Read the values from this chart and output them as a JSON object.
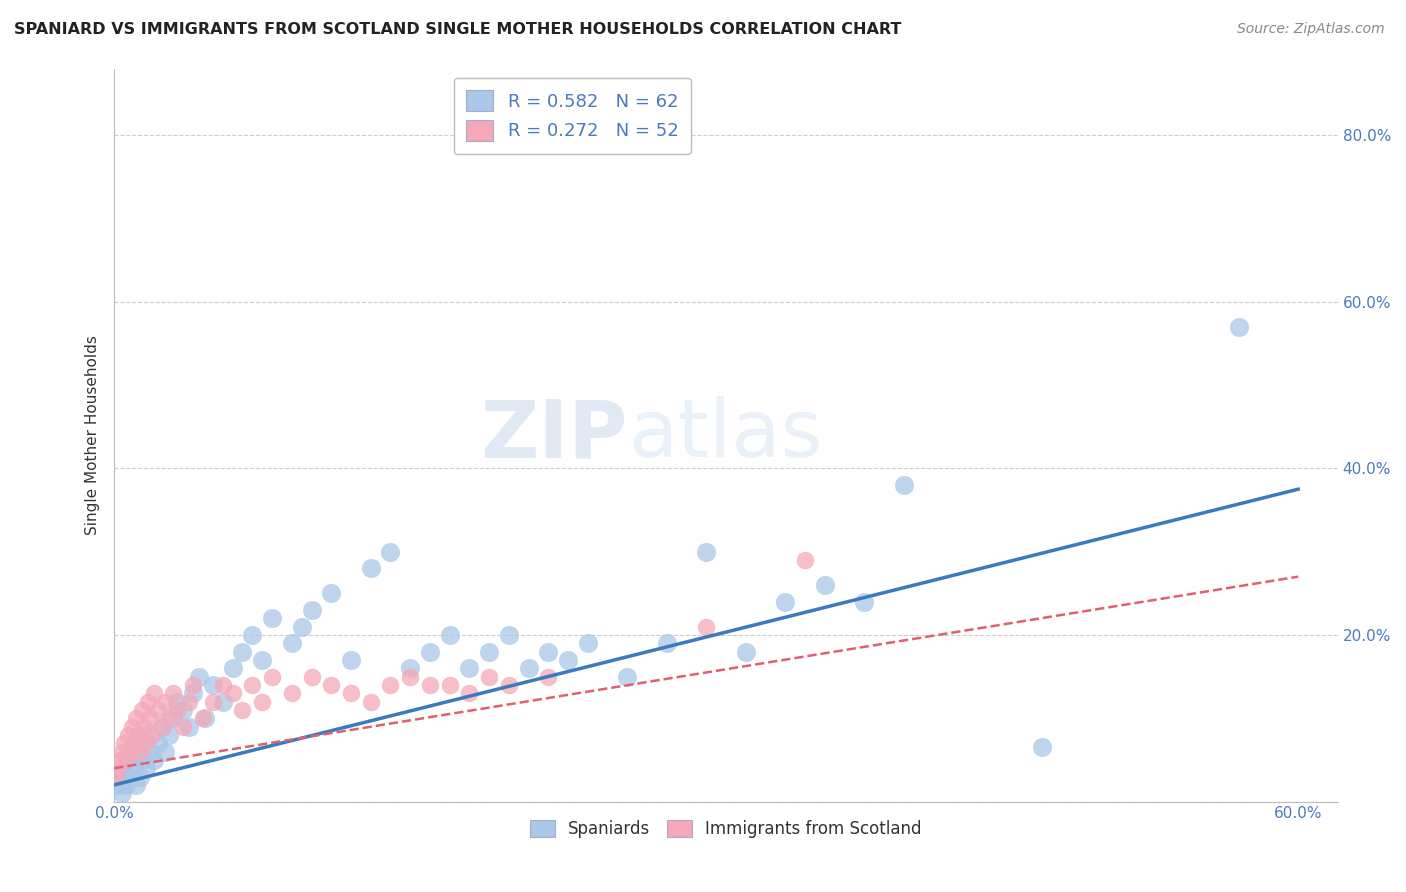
{
  "title": "SPANIARD VS IMMIGRANTS FROM SCOTLAND SINGLE MOTHER HOUSEHOLDS CORRELATION CHART",
  "source": "Source: ZipAtlas.com",
  "ylabel": "Single Mother Households",
  "xlim": [
    0.0,
    0.62
  ],
  "ylim": [
    0.0,
    0.88
  ],
  "xticks": [
    0.0,
    0.1,
    0.2,
    0.3,
    0.4,
    0.5,
    0.6
  ],
  "xticklabels": [
    "0.0%",
    "",
    "",
    "",
    "",
    "",
    "60.0%"
  ],
  "yticks": [
    0.0,
    0.2,
    0.4,
    0.6,
    0.8
  ],
  "yticklabels": [
    "",
    "20.0%",
    "40.0%",
    "60.0%",
    "80.0%"
  ],
  "blue_R": 0.582,
  "blue_N": 62,
  "pink_R": 0.272,
  "pink_N": 52,
  "blue_color": "#a8c8e8",
  "pink_color": "#f4a8b8",
  "blue_line_color": "#3a7abf",
  "pink_line_color": "#e06070",
  "legend_label_blue": "Spaniards",
  "legend_label_pink": "Immigrants from Scotland",
  "watermark_1": "ZIP",
  "watermark_2": "atlas",
  "background_color": "#ffffff",
  "grid_color": "#cccccc",
  "blue_trend_x0": 0.0,
  "blue_trend_y0": 0.02,
  "blue_trend_x1": 0.6,
  "blue_trend_y1": 0.375,
  "pink_trend_x0": 0.0,
  "pink_trend_y0": 0.04,
  "pink_trend_x1": 0.6,
  "pink_trend_y1": 0.27,
  "blue_scatter_x": [
    0.002,
    0.003,
    0.004,
    0.005,
    0.006,
    0.007,
    0.008,
    0.009,
    0.01,
    0.011,
    0.012,
    0.013,
    0.014,
    0.015,
    0.016,
    0.018,
    0.02,
    0.022,
    0.024,
    0.026,
    0.028,
    0.03,
    0.032,
    0.035,
    0.038,
    0.04,
    0.043,
    0.046,
    0.05,
    0.055,
    0.06,
    0.065,
    0.07,
    0.075,
    0.08,
    0.09,
    0.095,
    0.1,
    0.11,
    0.12,
    0.13,
    0.14,
    0.15,
    0.16,
    0.17,
    0.18,
    0.19,
    0.2,
    0.21,
    0.22,
    0.23,
    0.24,
    0.26,
    0.28,
    0.3,
    0.32,
    0.34,
    0.36,
    0.38,
    0.4,
    0.47,
    0.57
  ],
  "blue_scatter_y": [
    0.02,
    0.03,
    0.01,
    0.04,
    0.02,
    0.05,
    0.03,
    0.06,
    0.04,
    0.02,
    0.07,
    0.03,
    0.05,
    0.08,
    0.04,
    0.06,
    0.05,
    0.07,
    0.09,
    0.06,
    0.08,
    0.1,
    0.12,
    0.11,
    0.09,
    0.13,
    0.15,
    0.1,
    0.14,
    0.12,
    0.16,
    0.18,
    0.2,
    0.17,
    0.22,
    0.19,
    0.21,
    0.23,
    0.25,
    0.17,
    0.28,
    0.3,
    0.16,
    0.18,
    0.2,
    0.16,
    0.18,
    0.2,
    0.16,
    0.18,
    0.17,
    0.19,
    0.15,
    0.19,
    0.3,
    0.18,
    0.24,
    0.26,
    0.24,
    0.38,
    0.065,
    0.57
  ],
  "pink_scatter_x": [
    0.001,
    0.002,
    0.003,
    0.004,
    0.005,
    0.006,
    0.007,
    0.008,
    0.009,
    0.01,
    0.011,
    0.012,
    0.013,
    0.014,
    0.015,
    0.016,
    0.017,
    0.018,
    0.019,
    0.02,
    0.022,
    0.024,
    0.026,
    0.028,
    0.03,
    0.032,
    0.035,
    0.038,
    0.04,
    0.045,
    0.05,
    0.055,
    0.06,
    0.065,
    0.07,
    0.075,
    0.08,
    0.09,
    0.1,
    0.11,
    0.12,
    0.13,
    0.14,
    0.15,
    0.16,
    0.17,
    0.18,
    0.19,
    0.2,
    0.22,
    0.3,
    0.35
  ],
  "pink_scatter_y": [
    0.03,
    0.04,
    0.05,
    0.06,
    0.07,
    0.05,
    0.08,
    0.06,
    0.09,
    0.07,
    0.1,
    0.08,
    0.06,
    0.11,
    0.09,
    0.07,
    0.12,
    0.1,
    0.08,
    0.13,
    0.11,
    0.09,
    0.12,
    0.1,
    0.13,
    0.11,
    0.09,
    0.12,
    0.14,
    0.1,
    0.12,
    0.14,
    0.13,
    0.11,
    0.14,
    0.12,
    0.15,
    0.13,
    0.15,
    0.14,
    0.13,
    0.12,
    0.14,
    0.15,
    0.14,
    0.14,
    0.13,
    0.15,
    0.14,
    0.15,
    0.21,
    0.29
  ]
}
